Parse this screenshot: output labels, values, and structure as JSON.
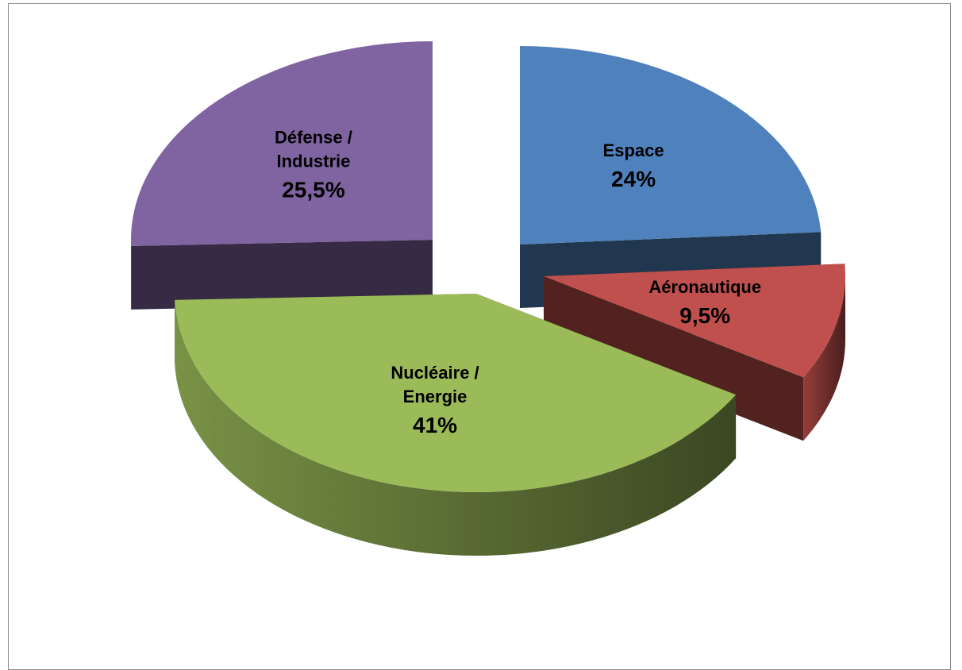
{
  "chart_data": {
    "type": "pie",
    "title": "",
    "slices": [
      {
        "name": "Espace",
        "name_lines": [
          "Espace"
        ],
        "value": 24,
        "label": "24%",
        "color": "#4f81bd"
      },
      {
        "name": "Aéronautique",
        "name_lines": [
          "Aéronautique"
        ],
        "value": 9.5,
        "label": "9,5%",
        "color": "#c0504d"
      },
      {
        "name": "Nucléaire / Energie",
        "name_lines": [
          "Nucléaire /",
          "Energie"
        ],
        "value": 41,
        "label": "41%",
        "color": "#9bbb59"
      },
      {
        "name": "Défense / Industrie",
        "name_lines": [
          "Défense /",
          "Industrie"
        ],
        "value": 25.5,
        "label": "25,5%",
        "color": "#8064a2"
      }
    ],
    "style": "3d-exploded",
    "legend": "none"
  }
}
